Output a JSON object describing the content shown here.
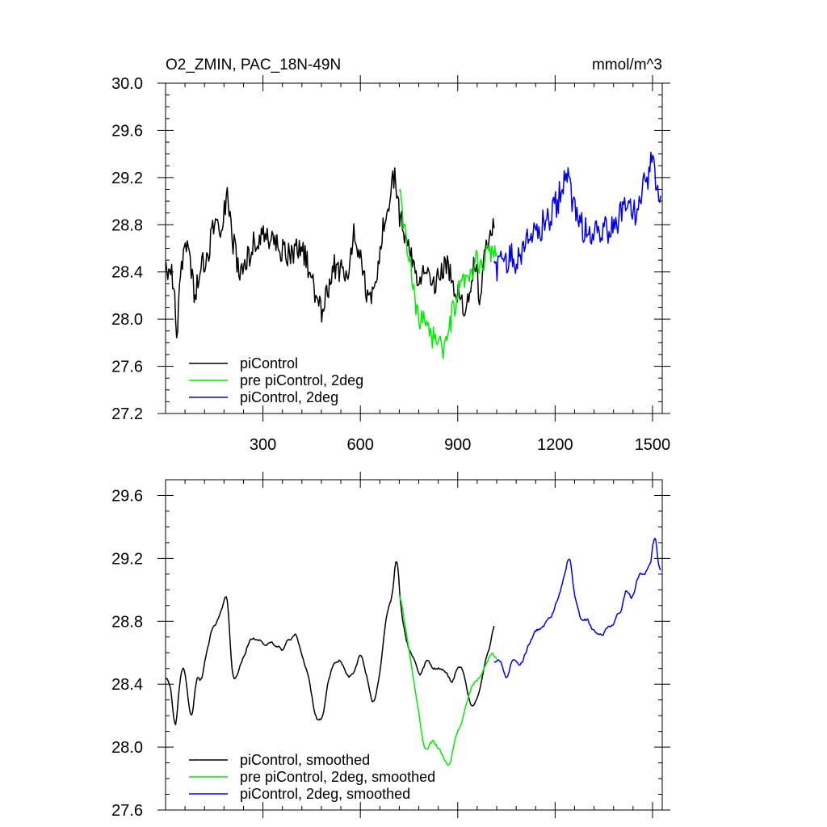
{
  "chart_data": [
    {
      "type": "line",
      "title": "O2_ZMIN, PAC_18N-49N",
      "units": "mmol/m^3",
      "xlim": [
        0,
        1530
      ],
      "ylim": [
        27.2,
        30.0
      ],
      "xticks": [
        "300",
        "600",
        "900",
        "1200",
        "1500"
      ],
      "yticks": [
        "27.2",
        "27.6",
        "28.0",
        "28.4",
        "28.8",
        "29.2",
        "29.6",
        "30.0"
      ],
      "legend_position": "bottom-left",
      "series": [
        {
          "name": "piControl",
          "color": "#000000",
          "x_range": [
            1,
            1012
          ],
          "noise": 0.11,
          "anchors": [
            [
              1,
              28.45
            ],
            [
              20,
              28.4
            ],
            [
              35,
              27.9
            ],
            [
              50,
              28.5
            ],
            [
              70,
              28.65
            ],
            [
              90,
              28.2
            ],
            [
              110,
              28.45
            ],
            [
              130,
              28.5
            ],
            [
              150,
              28.85
            ],
            [
              170,
              28.8
            ],
            [
              190,
              29.05
            ],
            [
              205,
              28.7
            ],
            [
              225,
              28.4
            ],
            [
              250,
              28.5
            ],
            [
              280,
              28.7
            ],
            [
              320,
              28.7
            ],
            [
              350,
              28.6
            ],
            [
              380,
              28.55
            ],
            [
              410,
              28.6
            ],
            [
              430,
              28.55
            ],
            [
              450,
              28.35
            ],
            [
              480,
              28.05
            ],
            [
              500,
              28.25
            ],
            [
              520,
              28.45
            ],
            [
              540,
              28.4
            ],
            [
              560,
              28.3
            ],
            [
              580,
              28.7
            ],
            [
              600,
              28.55
            ],
            [
              620,
              28.2
            ],
            [
              635,
              28.15
            ],
            [
              650,
              28.35
            ],
            [
              670,
              28.75
            ],
            [
              690,
              28.95
            ],
            [
              705,
              29.25
            ],
            [
              720,
              28.9
            ],
            [
              740,
              28.65
            ],
            [
              760,
              28.5
            ],
            [
              780,
              28.35
            ],
            [
              800,
              28.5
            ],
            [
              830,
              28.3
            ],
            [
              850,
              28.4
            ],
            [
              870,
              28.45
            ],
            [
              900,
              28.2
            ],
            [
              930,
              28.1
            ],
            [
              950,
              28.5
            ],
            [
              970,
              28.15
            ],
            [
              990,
              28.7
            ],
            [
              1012,
              28.75
            ]
          ]
        },
        {
          "name": "pre piControl, 2deg",
          "color": "#00ee00",
          "x_range": [
            720,
            1020
          ],
          "noise": 0.11,
          "anchors": [
            [
              720,
              29.05
            ],
            [
              740,
              28.7
            ],
            [
              760,
              28.3
            ],
            [
              780,
              27.95
            ],
            [
              800,
              28.05
            ],
            [
              820,
              27.85
            ],
            [
              840,
              27.85
            ],
            [
              860,
              27.7
            ],
            [
              880,
              28.0
            ],
            [
              900,
              28.2
            ],
            [
              920,
              28.3
            ],
            [
              940,
              28.35
            ],
            [
              960,
              28.5
            ],
            [
              980,
              28.45
            ],
            [
              1000,
              28.6
            ],
            [
              1020,
              28.55
            ]
          ]
        },
        {
          "name": "piControl, 2deg",
          "color": "#0000ee",
          "x_range": [
            1012,
            1525
          ],
          "noise": 0.13,
          "anchors": [
            [
              1012,
              28.45
            ],
            [
              1040,
              28.45
            ],
            [
              1060,
              28.55
            ],
            [
              1080,
              28.5
            ],
            [
              1100,
              28.6
            ],
            [
              1120,
              28.7
            ],
            [
              1140,
              28.75
            ],
            [
              1160,
              28.8
            ],
            [
              1180,
              28.85
            ],
            [
              1200,
              28.95
            ],
            [
              1220,
              29.1
            ],
            [
              1240,
              29.25
            ],
            [
              1255,
              28.95
            ],
            [
              1270,
              28.8
            ],
            [
              1300,
              28.75
            ],
            [
              1320,
              28.7
            ],
            [
              1350,
              28.75
            ],
            [
              1380,
              28.8
            ],
            [
              1410,
              28.9
            ],
            [
              1430,
              29.05
            ],
            [
              1450,
              28.85
            ],
            [
              1470,
              29.15
            ],
            [
              1490,
              29.2
            ],
            [
              1502,
              29.45
            ],
            [
              1510,
              29.15
            ],
            [
              1525,
              29.05
            ]
          ]
        }
      ]
    },
    {
      "type": "line",
      "xlim": [
        0,
        1530
      ],
      "ylim": [
        27.6,
        29.7
      ],
      "yticks": [
        "27.6",
        "28.0",
        "28.4",
        "28.8",
        "29.2",
        "29.6"
      ],
      "legend_position": "bottom-left",
      "series": [
        {
          "name": "piControl, smoothed",
          "color": "#000000",
          "x_range": [
            1,
            1012
          ],
          "noise": 0.035,
          "anchors": [
            [
              1,
              28.45
            ],
            [
              10,
              28.42
            ],
            [
              20,
              28.35
            ],
            [
              30,
              28.02
            ],
            [
              40,
              28.35
            ],
            [
              55,
              28.55
            ],
            [
              65,
              28.4
            ],
            [
              80,
              28.13
            ],
            [
              95,
              28.45
            ],
            [
              110,
              28.4
            ],
            [
              125,
              28.6
            ],
            [
              140,
              28.75
            ],
            [
              160,
              28.8
            ],
            [
              180,
              28.95
            ],
            [
              190,
              29.0
            ],
            [
              205,
              28.45
            ],
            [
              220,
              28.45
            ],
            [
              240,
              28.55
            ],
            [
              260,
              28.7
            ],
            [
              280,
              28.7
            ],
            [
              300,
              28.65
            ],
            [
              320,
              28.65
            ],
            [
              340,
              28.65
            ],
            [
              360,
              28.6
            ],
            [
              380,
              28.7
            ],
            [
              400,
              28.7
            ],
            [
              420,
              28.6
            ],
            [
              440,
              28.45
            ],
            [
              460,
              28.2
            ],
            [
              480,
              28.15
            ],
            [
              500,
              28.4
            ],
            [
              520,
              28.55
            ],
            [
              540,
              28.55
            ],
            [
              560,
              28.45
            ],
            [
              580,
              28.45
            ],
            [
              600,
              28.6
            ],
            [
              620,
              28.45
            ],
            [
              640,
              28.25
            ],
            [
              660,
              28.45
            ],
            [
              680,
              28.85
            ],
            [
              700,
              28.95
            ],
            [
              712,
              29.3
            ],
            [
              725,
              28.85
            ],
            [
              745,
              28.65
            ],
            [
              765,
              28.55
            ],
            [
              785,
              28.45
            ],
            [
              805,
              28.55
            ],
            [
              825,
              28.5
            ],
            [
              845,
              28.5
            ],
            [
              865,
              28.45
            ],
            [
              885,
              28.4
            ],
            [
              905,
              28.55
            ],
            [
              925,
              28.4
            ],
            [
              945,
              28.25
            ],
            [
              965,
              28.3
            ],
            [
              985,
              28.55
            ],
            [
              1000,
              28.65
            ],
            [
              1012,
              28.8
            ]
          ]
        },
        {
          "name": "pre piControl, 2deg, smoothed",
          "color": "#00ee00",
          "x_range": [
            720,
            1020
          ],
          "noise": 0.035,
          "anchors": [
            [
              720,
              29.0
            ],
            [
              740,
              28.75
            ],
            [
              760,
              28.5
            ],
            [
              780,
              28.2
            ],
            [
              800,
              27.95
            ],
            [
              820,
              28.05
            ],
            [
              840,
              28.0
            ],
            [
              860,
              27.9
            ],
            [
              875,
              27.85
            ],
            [
              890,
              28.05
            ],
            [
              910,
              28.15
            ],
            [
              930,
              28.3
            ],
            [
              950,
              28.4
            ],
            [
              970,
              28.45
            ],
            [
              990,
              28.55
            ],
            [
              1005,
              28.6
            ],
            [
              1020,
              28.55
            ]
          ]
        },
        {
          "name": "piControl, 2deg, smoothed",
          "color": "#0000ee",
          "x_range": [
            1012,
            1525
          ],
          "noise": 0.04,
          "anchors": [
            [
              1012,
              28.55
            ],
            [
              1030,
              28.55
            ],
            [
              1050,
              28.45
            ],
            [
              1070,
              28.55
            ],
            [
              1090,
              28.5
            ],
            [
              1110,
              28.6
            ],
            [
              1130,
              28.7
            ],
            [
              1150,
              28.75
            ],
            [
              1170,
              28.8
            ],
            [
              1190,
              28.85
            ],
            [
              1210,
              28.95
            ],
            [
              1230,
              29.1
            ],
            [
              1245,
              29.25
            ],
            [
              1260,
              28.95
            ],
            [
              1280,
              28.8
            ],
            [
              1300,
              28.8
            ],
            [
              1320,
              28.75
            ],
            [
              1340,
              28.7
            ],
            [
              1360,
              28.75
            ],
            [
              1380,
              28.8
            ],
            [
              1400,
              28.85
            ],
            [
              1420,
              29.0
            ],
            [
              1440,
              28.95
            ],
            [
              1460,
              29.1
            ],
            [
              1480,
              29.1
            ],
            [
              1500,
              29.2
            ],
            [
              1505,
              29.45
            ],
            [
              1515,
              29.15
            ],
            [
              1525,
              29.1
            ]
          ]
        }
      ]
    }
  ]
}
